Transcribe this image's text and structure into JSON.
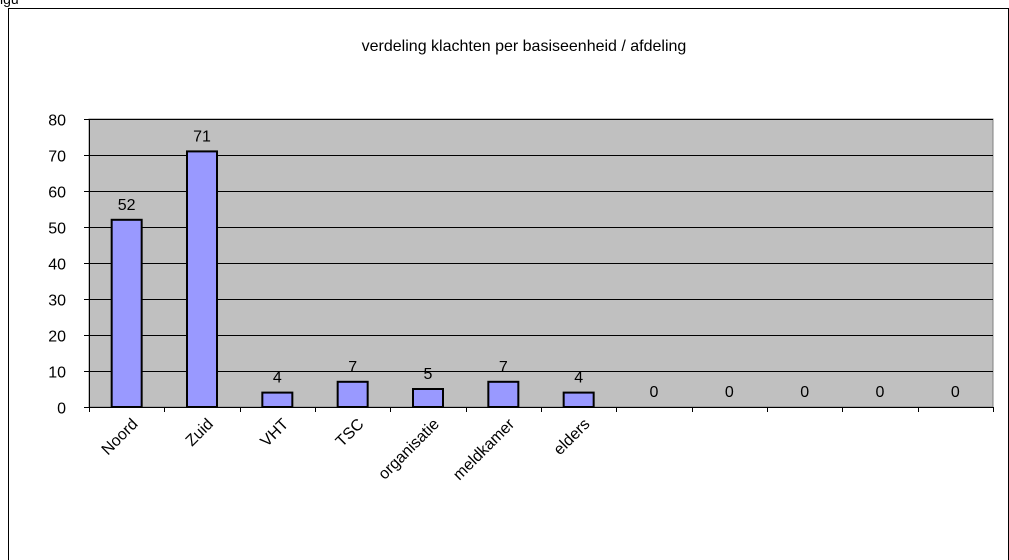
{
  "header_fragment": "igu",
  "chart_data": {
    "type": "bar",
    "title": "verdeling klachten per basiseenheid / afdeling",
    "xlabel": "",
    "ylabel": "",
    "categories": [
      "Noord",
      "Zuid",
      "VHT",
      "TSC",
      "organisatie",
      "meldkamer",
      "elders",
      "",
      "",
      "",
      "",
      ""
    ],
    "values": [
      52,
      71,
      4,
      7,
      5,
      7,
      4,
      0,
      0,
      0,
      0,
      0
    ],
    "data_labels": [
      "52",
      "71",
      "4",
      "7",
      "5",
      "7",
      "4",
      "0",
      "0",
      "0",
      "0",
      "0"
    ],
    "ylim": [
      0,
      80
    ],
    "yticks": [
      0,
      10,
      20,
      30,
      40,
      50,
      60,
      70,
      80
    ],
    "ytick_labels": [
      "0",
      "10",
      "20",
      "30",
      "40",
      "50",
      "60",
      "70",
      "80"
    ],
    "grid": true,
    "legend": "none",
    "colors": {
      "plot_background": "#c0c0c0",
      "bar_fill": "#9999ff",
      "bar_stroke": "#000000",
      "grid": "#000000",
      "outer_border": "#000000"
    }
  }
}
